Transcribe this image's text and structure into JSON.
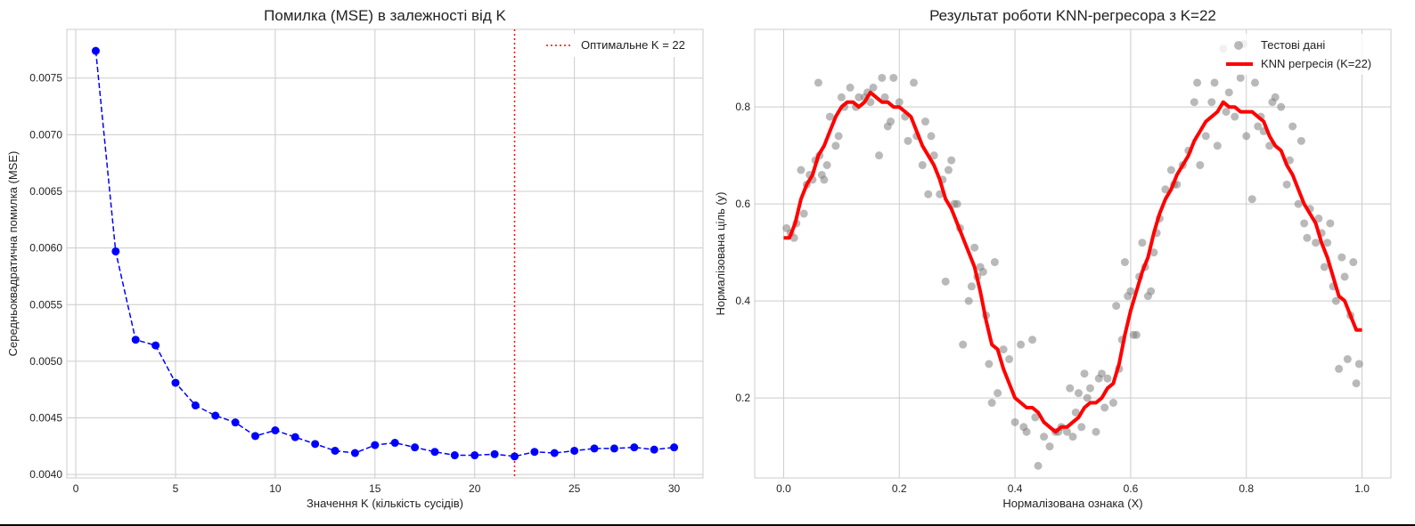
{
  "chart_data": [
    {
      "type": "line",
      "title": "Помилка (MSE) в залежності від K",
      "xlabel": "Значення K (кількість сусідів)",
      "ylabel": "Середньоквадратична помилка (MSE)",
      "xlim": [
        -0.45,
        31.45
      ],
      "ylim": [
        0.00397,
        0.00793
      ],
      "xticks": [
        0,
        5,
        10,
        15,
        20,
        25,
        30
      ],
      "xtick_labels": [
        "0",
        "5",
        "10",
        "15",
        "20",
        "25",
        "30"
      ],
      "yticks": [
        0.004,
        0.0045,
        0.005,
        0.0055,
        0.006,
        0.0065,
        0.007,
        0.0075
      ],
      "ytick_labels": [
        "0.0040",
        "0.0045",
        "0.0050",
        "0.0055",
        "0.0060",
        "0.0065",
        "0.0070",
        "0.0075"
      ],
      "grid": true,
      "legend_position": "top-right",
      "series": [
        {
          "name": "",
          "color": "#0000ff",
          "line_style": "dashed",
          "marker": "circle",
          "x": [
            1,
            2,
            3,
            4,
            5,
            6,
            7,
            8,
            9,
            10,
            11,
            12,
            13,
            14,
            15,
            16,
            17,
            18,
            19,
            20,
            21,
            22,
            23,
            24,
            25,
            26,
            27,
            28,
            29,
            30
          ],
          "y": [
            0.00774,
            0.00597,
            0.00519,
            0.00514,
            0.00481,
            0.00461,
            0.00452,
            0.00446,
            0.00434,
            0.00439,
            0.00433,
            0.00427,
            0.00421,
            0.00419,
            0.00426,
            0.00428,
            0.00424,
            0.0042,
            0.00417,
            0.00417,
            0.00418,
            0.00416,
            0.0042,
            0.00419,
            0.00421,
            0.00423,
            0.00423,
            0.00424,
            0.00422,
            0.00424
          ]
        }
      ],
      "vlines": [
        {
          "x": 22,
          "name": "Оптимальне K = 22",
          "color": "#ff0000",
          "line_style": "dotted"
        }
      ]
    },
    {
      "type": "scatter",
      "title": "Результат роботи KNN-регресора з K=22",
      "xlabel": "Нормалізована ознака (X)",
      "ylabel": "Нормалізована ціль (y)",
      "xlim": [
        -0.05,
        1.05
      ],
      "ylim": [
        0.035,
        0.96
      ],
      "xticks": [
        0.0,
        0.2,
        0.4,
        0.6,
        0.8,
        1.0
      ],
      "xtick_labels": [
        "0.0",
        "0.2",
        "0.4",
        "0.6",
        "0.8",
        "1.0"
      ],
      "yticks": [
        0.2,
        0.4,
        0.6,
        0.8
      ],
      "ytick_labels": [
        "0.2",
        "0.4",
        "0.6",
        "0.8"
      ],
      "grid": true,
      "legend_position": "top-right",
      "scatter_series": {
        "name": "Тестові дані",
        "color": "#808080",
        "points": [
          [
            0.005,
            0.55
          ],
          [
            0.012,
            0.54
          ],
          [
            0.018,
            0.53
          ],
          [
            0.022,
            0.56
          ],
          [
            0.03,
            0.67
          ],
          [
            0.035,
            0.58
          ],
          [
            0.04,
            0.64
          ],
          [
            0.045,
            0.66
          ],
          [
            0.05,
            0.65
          ],
          [
            0.055,
            0.69
          ],
          [
            0.06,
            0.85
          ],
          [
            0.062,
            0.7
          ],
          [
            0.066,
            0.66
          ],
          [
            0.07,
            0.65
          ],
          [
            0.075,
            0.68
          ],
          [
            0.08,
            0.78
          ],
          [
            0.09,
            0.72
          ],
          [
            0.095,
            0.74
          ],
          [
            0.1,
            0.82
          ],
          [
            0.105,
            0.8
          ],
          [
            0.115,
            0.84
          ],
          [
            0.125,
            0.8
          ],
          [
            0.13,
            0.82
          ],
          [
            0.14,
            0.82
          ],
          [
            0.145,
            0.83
          ],
          [
            0.15,
            0.81
          ],
          [
            0.155,
            0.84
          ],
          [
            0.165,
            0.7
          ],
          [
            0.17,
            0.86
          ],
          [
            0.175,
            0.82
          ],
          [
            0.18,
            0.76
          ],
          [
            0.185,
            0.77
          ],
          [
            0.19,
            0.86
          ],
          [
            0.2,
            0.81
          ],
          [
            0.21,
            0.78
          ],
          [
            0.215,
            0.73
          ],
          [
            0.225,
            0.85
          ],
          [
            0.23,
            0.74
          ],
          [
            0.24,
            0.68
          ],
          [
            0.245,
            0.77
          ],
          [
            0.25,
            0.62
          ],
          [
            0.255,
            0.74
          ],
          [
            0.26,
            0.7
          ],
          [
            0.27,
            0.62
          ],
          [
            0.275,
            0.65
          ],
          [
            0.28,
            0.44
          ],
          [
            0.285,
            0.67
          ],
          [
            0.29,
            0.69
          ],
          [
            0.295,
            0.6
          ],
          [
            0.3,
            0.6
          ],
          [
            0.305,
            0.55
          ],
          [
            0.31,
            0.31
          ],
          [
            0.32,
            0.4
          ],
          [
            0.325,
            0.43
          ],
          [
            0.33,
            0.51
          ],
          [
            0.335,
            0.45
          ],
          [
            0.34,
            0.47
          ],
          [
            0.345,
            0.46
          ],
          [
            0.35,
            0.37
          ],
          [
            0.355,
            0.27
          ],
          [
            0.36,
            0.19
          ],
          [
            0.365,
            0.48
          ],
          [
            0.37,
            0.21
          ],
          [
            0.38,
            0.3
          ],
          [
            0.39,
            0.28
          ],
          [
            0.4,
            0.15
          ],
          [
            0.41,
            0.31
          ],
          [
            0.415,
            0.14
          ],
          [
            0.42,
            0.13
          ],
          [
            0.43,
            0.32
          ],
          [
            0.435,
            0.16
          ],
          [
            0.44,
            0.06
          ],
          [
            0.45,
            0.12
          ],
          [
            0.46,
            0.1
          ],
          [
            0.47,
            0.13
          ],
          [
            0.475,
            0.13
          ],
          [
            0.48,
            0.14
          ],
          [
            0.49,
            0.13
          ],
          [
            0.495,
            0.22
          ],
          [
            0.5,
            0.12
          ],
          [
            0.505,
            0.17
          ],
          [
            0.51,
            0.21
          ],
          [
            0.515,
            0.14
          ],
          [
            0.52,
            0.25
          ],
          [
            0.525,
            0.2
          ],
          [
            0.53,
            0.22
          ],
          [
            0.54,
            0.13
          ],
          [
            0.545,
            0.24
          ],
          [
            0.55,
            0.25
          ],
          [
            0.555,
            0.18
          ],
          [
            0.56,
            0.24
          ],
          [
            0.57,
            0.19
          ],
          [
            0.575,
            0.39
          ],
          [
            0.58,
            0.26
          ],
          [
            0.585,
            0.32
          ],
          [
            0.59,
            0.48
          ],
          [
            0.595,
            0.41
          ],
          [
            0.6,
            0.42
          ],
          [
            0.605,
            0.33
          ],
          [
            0.61,
            0.33
          ],
          [
            0.615,
            0.45
          ],
          [
            0.62,
            0.52
          ],
          [
            0.625,
            0.47
          ],
          [
            0.63,
            0.41
          ],
          [
            0.635,
            0.42
          ],
          [
            0.64,
            0.5
          ],
          [
            0.645,
            0.54
          ],
          [
            0.65,
            0.57
          ],
          [
            0.66,
            0.63
          ],
          [
            0.67,
            0.67
          ],
          [
            0.675,
            0.64
          ],
          [
            0.68,
            0.64
          ],
          [
            0.69,
            0.68
          ],
          [
            0.7,
            0.71
          ],
          [
            0.71,
            0.81
          ],
          [
            0.715,
            0.85
          ],
          [
            0.72,
            0.68
          ],
          [
            0.73,
            0.74
          ],
          [
            0.74,
            0.81
          ],
          [
            0.745,
            0.85
          ],
          [
            0.75,
            0.72
          ],
          [
            0.76,
            0.92
          ],
          [
            0.765,
            0.79
          ],
          [
            0.77,
            0.83
          ],
          [
            0.78,
            0.78
          ],
          [
            0.79,
            0.86
          ],
          [
            0.795,
            0.93
          ],
          [
            0.8,
            0.74
          ],
          [
            0.81,
            0.61
          ],
          [
            0.815,
            0.85
          ],
          [
            0.82,
            0.76
          ],
          [
            0.825,
            0.78
          ],
          [
            0.83,
            0.75
          ],
          [
            0.84,
            0.72
          ],
          [
            0.845,
            0.81
          ],
          [
            0.85,
            0.82
          ],
          [
            0.86,
            0.8
          ],
          [
            0.87,
            0.64
          ],
          [
            0.875,
            0.69
          ],
          [
            0.88,
            0.76
          ],
          [
            0.89,
            0.6
          ],
          [
            0.895,
            0.73
          ],
          [
            0.9,
            0.56
          ],
          [
            0.905,
            0.53
          ],
          [
            0.91,
            0.59
          ],
          [
            0.92,
            0.52
          ],
          [
            0.925,
            0.57
          ],
          [
            0.93,
            0.54
          ],
          [
            0.935,
            0.47
          ],
          [
            0.94,
            0.52
          ],
          [
            0.945,
            0.56
          ],
          [
            0.95,
            0.43
          ],
          [
            0.955,
            0.4
          ],
          [
            0.96,
            0.26
          ],
          [
            0.965,
            0.49
          ],
          [
            0.97,
            0.45
          ],
          [
            0.975,
            0.28
          ],
          [
            0.98,
            0.37
          ],
          [
            0.985,
            0.48
          ],
          [
            0.99,
            0.23
          ],
          [
            0.995,
            0.27
          ]
        ]
      },
      "line_series": {
        "name": "KNN регресія (K=22)",
        "color": "#ff0000",
        "points": [
          [
            0.0,
            0.53
          ],
          [
            0.01,
            0.53
          ],
          [
            0.02,
            0.56
          ],
          [
            0.03,
            0.61
          ],
          [
            0.04,
            0.64
          ],
          [
            0.05,
            0.66
          ],
          [
            0.06,
            0.7
          ],
          [
            0.07,
            0.72
          ],
          [
            0.08,
            0.75
          ],
          [
            0.09,
            0.78
          ],
          [
            0.1,
            0.8
          ],
          [
            0.11,
            0.81
          ],
          [
            0.12,
            0.81
          ],
          [
            0.13,
            0.8
          ],
          [
            0.14,
            0.81
          ],
          [
            0.15,
            0.83
          ],
          [
            0.16,
            0.82
          ],
          [
            0.17,
            0.81
          ],
          [
            0.18,
            0.81
          ],
          [
            0.19,
            0.8
          ],
          [
            0.2,
            0.8
          ],
          [
            0.21,
            0.79
          ],
          [
            0.22,
            0.78
          ],
          [
            0.23,
            0.75
          ],
          [
            0.24,
            0.72
          ],
          [
            0.25,
            0.7
          ],
          [
            0.26,
            0.68
          ],
          [
            0.27,
            0.65
          ],
          [
            0.28,
            0.61
          ],
          [
            0.29,
            0.59
          ],
          [
            0.3,
            0.56
          ],
          [
            0.31,
            0.53
          ],
          [
            0.32,
            0.5
          ],
          [
            0.33,
            0.47
          ],
          [
            0.34,
            0.42
          ],
          [
            0.35,
            0.36
          ],
          [
            0.36,
            0.31
          ],
          [
            0.37,
            0.3
          ],
          [
            0.38,
            0.26
          ],
          [
            0.39,
            0.23
          ],
          [
            0.4,
            0.2
          ],
          [
            0.41,
            0.19
          ],
          [
            0.42,
            0.18
          ],
          [
            0.43,
            0.18
          ],
          [
            0.44,
            0.17
          ],
          [
            0.45,
            0.15
          ],
          [
            0.46,
            0.14
          ],
          [
            0.47,
            0.13
          ],
          [
            0.48,
            0.14
          ],
          [
            0.49,
            0.14
          ],
          [
            0.5,
            0.15
          ],
          [
            0.51,
            0.16
          ],
          [
            0.52,
            0.18
          ],
          [
            0.53,
            0.19
          ],
          [
            0.54,
            0.19
          ],
          [
            0.55,
            0.2
          ],
          [
            0.56,
            0.22
          ],
          [
            0.57,
            0.23
          ],
          [
            0.58,
            0.27
          ],
          [
            0.59,
            0.33
          ],
          [
            0.6,
            0.38
          ],
          [
            0.61,
            0.42
          ],
          [
            0.62,
            0.46
          ],
          [
            0.63,
            0.49
          ],
          [
            0.64,
            0.54
          ],
          [
            0.65,
            0.58
          ],
          [
            0.66,
            0.61
          ],
          [
            0.67,
            0.63
          ],
          [
            0.68,
            0.66
          ],
          [
            0.69,
            0.68
          ],
          [
            0.7,
            0.7
          ],
          [
            0.71,
            0.73
          ],
          [
            0.72,
            0.75
          ],
          [
            0.73,
            0.77
          ],
          [
            0.74,
            0.78
          ],
          [
            0.75,
            0.79
          ],
          [
            0.76,
            0.81
          ],
          [
            0.77,
            0.8
          ],
          [
            0.78,
            0.8
          ],
          [
            0.79,
            0.79
          ],
          [
            0.8,
            0.79
          ],
          [
            0.81,
            0.79
          ],
          [
            0.82,
            0.78
          ],
          [
            0.83,
            0.77
          ],
          [
            0.84,
            0.74
          ],
          [
            0.85,
            0.72
          ],
          [
            0.86,
            0.71
          ],
          [
            0.87,
            0.68
          ],
          [
            0.88,
            0.66
          ],
          [
            0.89,
            0.63
          ],
          [
            0.9,
            0.6
          ],
          [
            0.91,
            0.58
          ],
          [
            0.92,
            0.56
          ],
          [
            0.93,
            0.52
          ],
          [
            0.94,
            0.49
          ],
          [
            0.95,
            0.45
          ],
          [
            0.96,
            0.41
          ],
          [
            0.97,
            0.4
          ],
          [
            0.98,
            0.37
          ],
          [
            0.99,
            0.34
          ],
          [
            1.0,
            0.34
          ]
        ]
      }
    }
  ]
}
